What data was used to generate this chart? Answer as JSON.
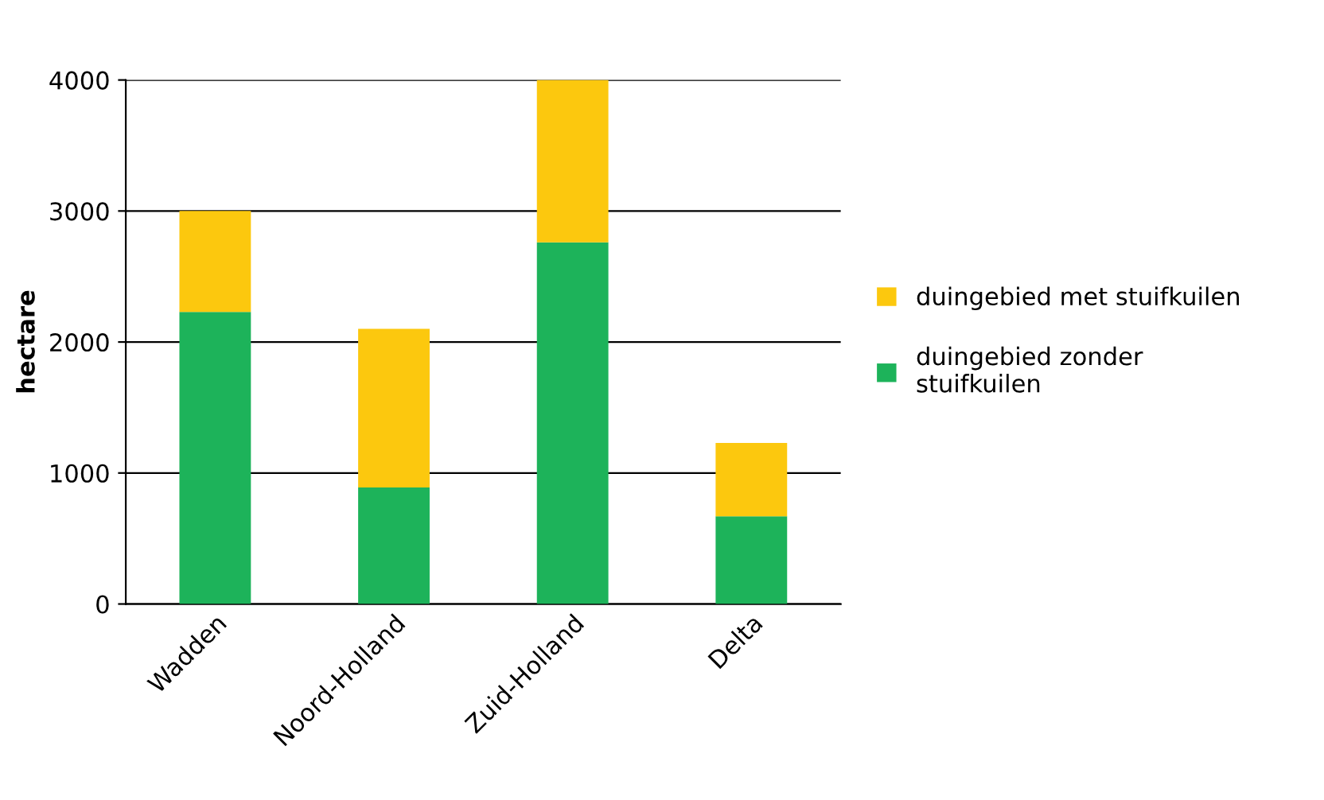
{
  "chart_data": {
    "type": "bar",
    "stacked": true,
    "ylabel": "hectare",
    "categories": [
      "Wadden",
      "Noord-Holland",
      "Zuid-Holland",
      "Delta"
    ],
    "series": [
      {
        "name": "duingebied zonder stuifkuilen",
        "color": "#1db35a",
        "values": [
          2230,
          890,
          2760,
          670
        ]
      },
      {
        "name": "duingebied met stuifkuilen",
        "color": "#fcc80e",
        "values": [
          770,
          1210,
          1240,
          560
        ]
      }
    ],
    "ylim": [
      0,
      4000
    ],
    "yticks": [
      0,
      1000,
      2000,
      3000,
      4000
    ],
    "grid": "y",
    "legend": "right"
  }
}
